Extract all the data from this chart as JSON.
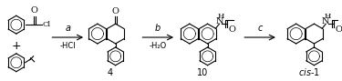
{
  "figsize": [
    3.75,
    0.89
  ],
  "dpi": 100,
  "background": "#ffffff",
  "title": "",
  "label_a": "a",
  "label_b": "b",
  "label_c": "c",
  "minus_hcl": "-HCl",
  "minus_h2o": "-H₂O",
  "compound_4": "4",
  "compound_10": "10",
  "compound_cis1": "cis-1",
  "font_size_labels": 7,
  "font_size_compounds": 7,
  "arrow_color": "#000000",
  "text_color": "#000000"
}
